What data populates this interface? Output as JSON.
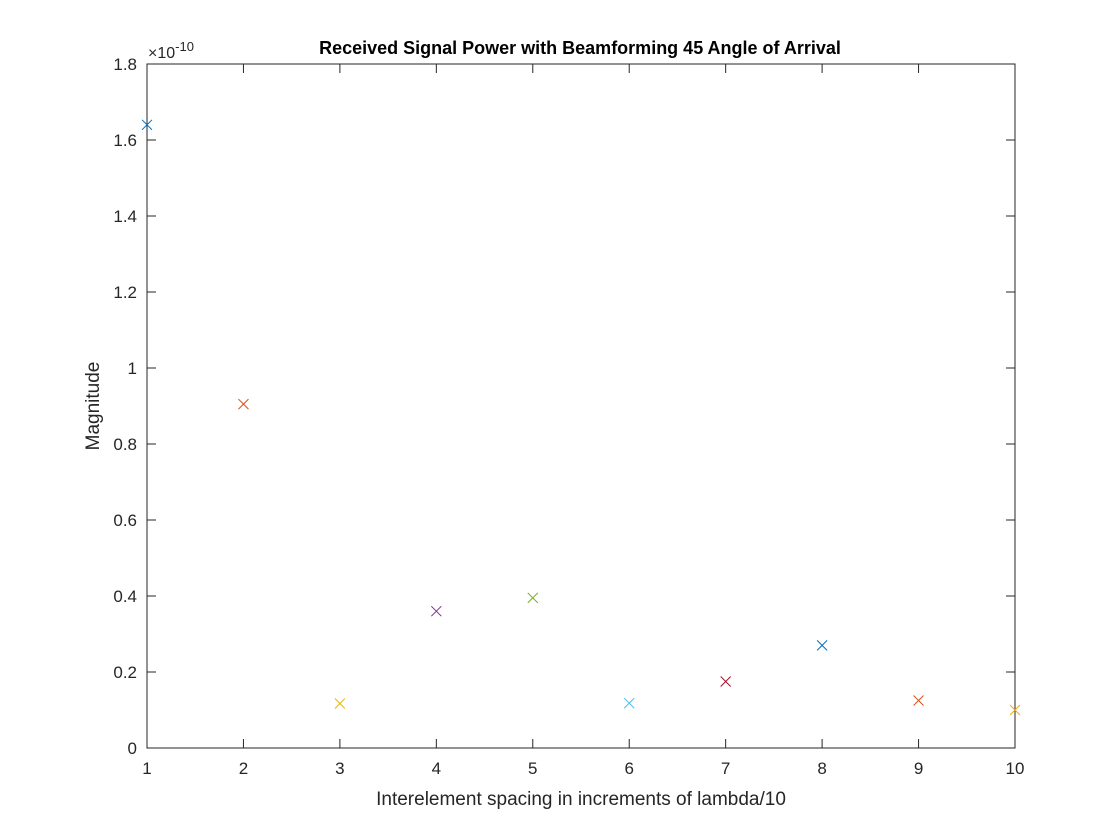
{
  "chart_data": {
    "type": "scatter",
    "title": "Received Signal Power with Beamforming 45 Angle of Arrival",
    "xlabel": "Interelement spacing in increments of lambda/10",
    "ylabel": "Magnitude",
    "y_exponent_prefix": "×10",
    "y_exponent_power": "-10",
    "xlim": [
      1,
      10
    ],
    "ylim": [
      0,
      1.8
    ],
    "y_scale_factor": 1e-10,
    "xticks": [
      1,
      2,
      3,
      4,
      5,
      6,
      7,
      8,
      9,
      10
    ],
    "xtick_labels": [
      "1",
      "2",
      "3",
      "4",
      "5",
      "6",
      "7",
      "8",
      "9",
      "10"
    ],
    "yticks": [
      0,
      0.2,
      0.4,
      0.6,
      0.8,
      1,
      1.2,
      1.4,
      1.6,
      1.8
    ],
    "ytick_labels": [
      "0",
      "0.2",
      "0.4",
      "0.6",
      "0.8",
      "1",
      "1.2",
      "1.4",
      "1.6",
      "1.8"
    ],
    "grid": false,
    "marker": "x",
    "points": [
      {
        "x": 1,
        "y": 1.64,
        "color": "#0072BD"
      },
      {
        "x": 2,
        "y": 0.905,
        "color": "#D95319"
      },
      {
        "x": 3,
        "y": 0.117,
        "color": "#EDB120"
      },
      {
        "x": 4,
        "y": 0.36,
        "color": "#7E2F8E"
      },
      {
        "x": 5,
        "y": 0.395,
        "color": "#77AC30"
      },
      {
        "x": 6,
        "y": 0.118,
        "color": "#4DBEEE"
      },
      {
        "x": 7,
        "y": 0.175,
        "color": "#A2142F"
      },
      {
        "x": 8,
        "y": 0.27,
        "color": "#0072BD"
      },
      {
        "x": 9,
        "y": 0.125,
        "color": "#D95319"
      },
      {
        "x": 10,
        "y": 0.1,
        "color": "#EDB120"
      }
    ]
  }
}
